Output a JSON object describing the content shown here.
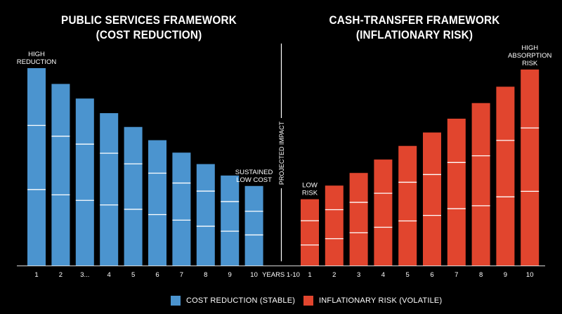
{
  "colors": {
    "background": "#000000",
    "blue": "#4b94cf",
    "red": "#e1452e",
    "divider": "#ffffff",
    "text": "#ffffff"
  },
  "chart_data": {
    "type": "bar",
    "divider_label": "PROJECTED IMPACT",
    "x_axis_center_label": "YEARS 1-10",
    "panels": [
      {
        "side": "left",
        "title_line1": "PUBLIC SERVICES FRAMEWORK",
        "title_line2": "(COST REDUCTION)",
        "color": "#4b94cf",
        "categories": [
          "1",
          "2",
          "3...",
          "4",
          "5",
          "6",
          "7",
          "8",
          "9",
          "10"
        ],
        "values": [
          100,
          92,
          84.6,
          77.2,
          70.2,
          63.5,
          57.2,
          51.4,
          45.6,
          40.3
        ],
        "segment_lines": [
          [
            71,
            38.5
          ],
          [
            65.5,
            35.8
          ],
          [
            61.5,
            33
          ],
          [
            56.9,
            30.7
          ],
          [
            51.5,
            28.5
          ],
          [
            46.8,
            25.8
          ],
          [
            41.8,
            23
          ],
          [
            37.7,
            19.9
          ],
          [
            32.4,
            17.4
          ],
          [
            27.5,
            15.5
          ]
        ],
        "annotations": [
          {
            "index": 0,
            "lines": [
              "HIGH",
              "REDUCTION"
            ]
          },
          {
            "index": 9,
            "lines": [
              "SUSTAINED",
              "LOW COST"
            ]
          }
        ]
      },
      {
        "side": "right",
        "title_line1": "CASH-TRANSFER FRAMEWORK",
        "title_line2": "(INFLATIONARY RISK)",
        "color": "#e1452e",
        "categories": [
          "1",
          "2",
          "3",
          "4",
          "5",
          "6",
          "7",
          "8",
          "9",
          "10"
        ],
        "values": [
          33.6,
          40.5,
          46.9,
          53.7,
          60.6,
          67.4,
          74.4,
          82.3,
          90.6,
          99.3
        ],
        "segment_lines": [
          [
            22.7,
            10.4
          ],
          [
            28.3,
            13.6
          ],
          [
            32,
            16.6
          ],
          [
            36.6,
            19.4
          ],
          [
            42.2,
            22.6
          ],
          [
            46.1,
            25.4
          ],
          [
            52.2,
            28.8
          ],
          [
            55.6,
            30.3
          ],
          [
            63.4,
            34.8
          ],
          [
            69.7,
            37.6
          ]
        ],
        "annotations": [
          {
            "index": 0,
            "lines": [
              "LOW",
              "RISK"
            ]
          },
          {
            "index": 9,
            "lines": [
              "HIGH",
              "ABSORPTION",
              "RISK"
            ]
          }
        ]
      }
    ],
    "legend": [
      {
        "label": "COST REDUCTION (STABLE)",
        "color": "#4b94cf"
      },
      {
        "label": "INFLATIONARY RISK (VOLATILE)",
        "color": "#e1452e"
      }
    ]
  }
}
